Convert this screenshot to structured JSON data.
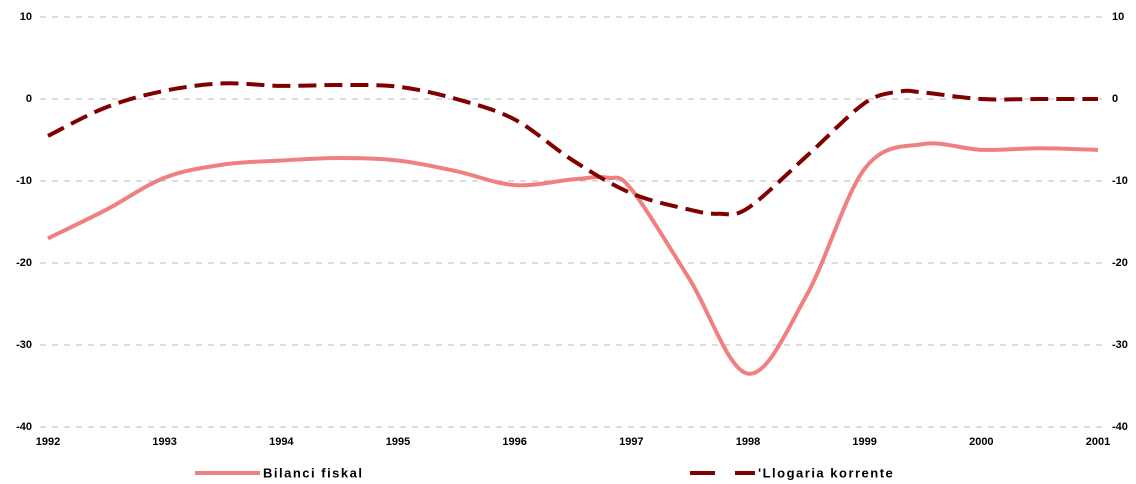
{
  "chart_data": {
    "type": "line",
    "xlim": [
      1992,
      2001
    ],
    "xticks": [
      1992,
      1993,
      1994,
      1995,
      1996,
      1997,
      1998,
      1999,
      2000,
      2001
    ],
    "ylim": [
      -40,
      10
    ],
    "yticks": [
      -40,
      -30,
      -20,
      -10,
      0,
      10
    ],
    "y2lim": [
      -40,
      10
    ],
    "y2ticks": [
      -40,
      -30,
      -20,
      -10,
      0,
      10
    ],
    "grid": true,
    "legend": "bottom",
    "series": [
      {
        "name": "Bilanci fiskal",
        "color": "#f08080",
        "dash": false,
        "x": [
          1992,
          1992.5,
          1993,
          1993.5,
          1994,
          1994.5,
          1995,
          1995.5,
          1996,
          1996.5,
          1996.8,
          1997,
          1997.5,
          1998,
          1998.5,
          1999,
          1999.5,
          2000,
          2000.5,
          2001
        ],
        "values": [
          -17,
          -13.5,
          -9.6,
          -8,
          -7.5,
          -7.2,
          -7.5,
          -8.8,
          -10.5,
          -9.8,
          -9.6,
          -11,
          -22,
          -33.5,
          -24,
          -8.5,
          -5.5,
          -6.2,
          -6,
          -6.2
        ]
      },
      {
        "name": "'Llogaria korrente",
        "color": "#800000",
        "dash": true,
        "x": [
          1992,
          1992.5,
          1993,
          1993.5,
          1994,
          1994.5,
          1995,
          1995.5,
          1996,
          1996.5,
          1997,
          1997.5,
          1997.75,
          1998,
          1998.5,
          1999,
          1999.3,
          1999.5,
          2000,
          2000.5,
          2001
        ],
        "values": [
          -4.5,
          -1,
          1,
          1.9,
          1.6,
          1.7,
          1.5,
          0,
          -2.5,
          -7.5,
          -11.5,
          -13.5,
          -14,
          -13.3,
          -7,
          -0.5,
          0.9,
          0.8,
          0,
          0,
          0
        ]
      }
    ]
  }
}
